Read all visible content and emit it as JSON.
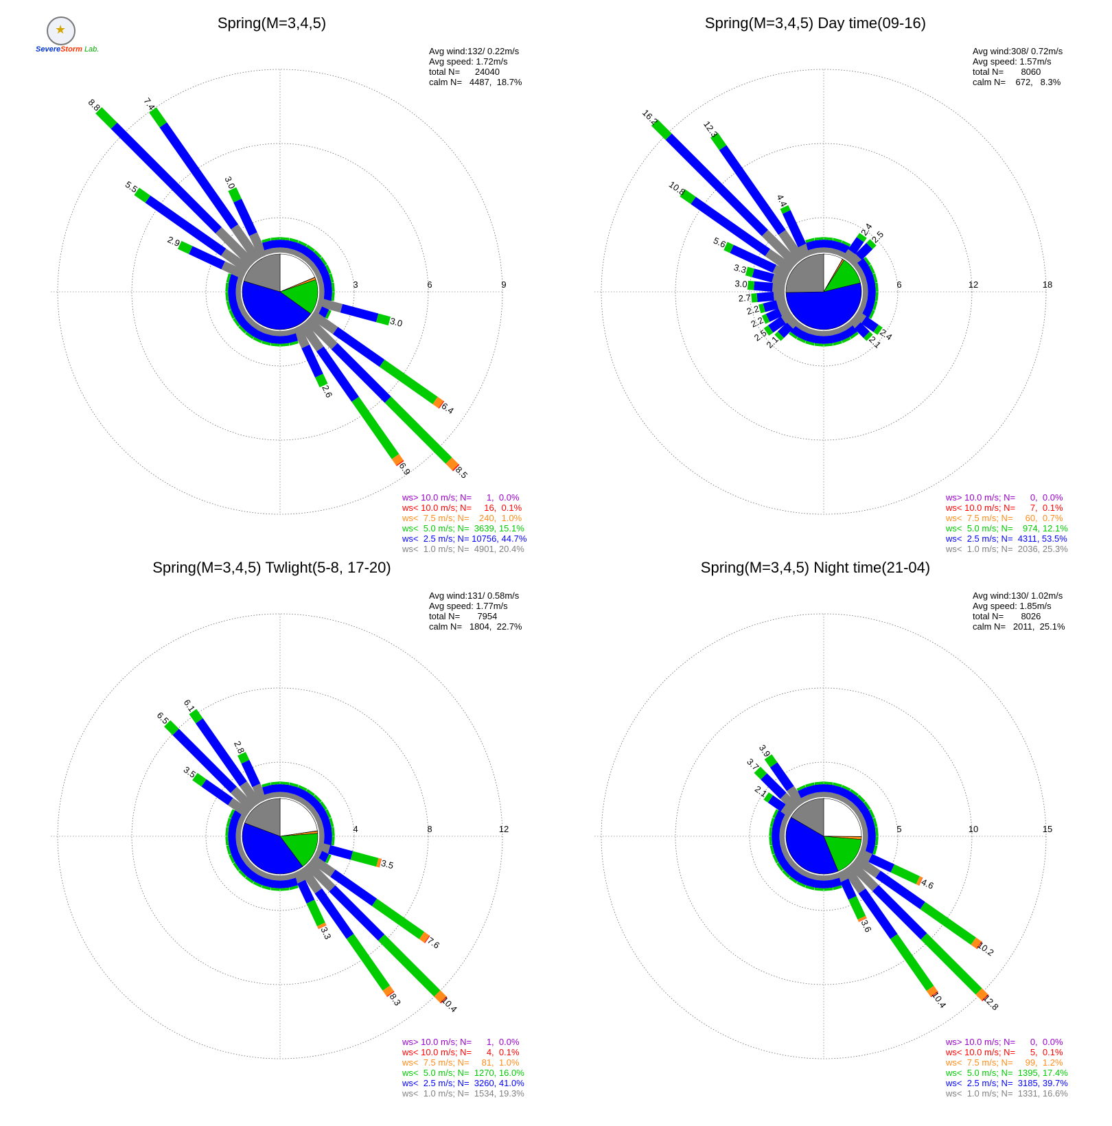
{
  "logo": {
    "text_severe": "Severe",
    "text_storm": "Storm",
    "text_lab": "Lab."
  },
  "colors": {
    "gt10": "#9900cc",
    "lt10": "#ff0000",
    "lt7_5": "#ff8c1a",
    "lt5": "#00cc00",
    "lt2_5": "#0000ff",
    "lt1": "#808080",
    "calm": "#ffffff"
  },
  "chart_data": [
    {
      "type": "windrose",
      "title": "Spring(M=3,4,5)",
      "rings": [
        3,
        6,
        9
      ],
      "stats": [
        "Avg wind:132/ 0.22m/s",
        "Avg speed: 1.72m/s",
        "total N=      24040",
        "calm N=   4487,  18.7%"
      ],
      "legend": [
        {
          "text": "ws> 10.0 m/s; N=      1,  0.0%",
          "color": "#9900cc"
        },
        {
          "text": "ws< 10.0 m/s; N=     16,  0.1%",
          "color": "#ff0000"
        },
        {
          "text": "ws<  7.5 m/s; N=    240,  1.0%",
          "color": "#ff8c1a"
        },
        {
          "text": "ws<  5.0 m/s; N=  3639, 15.1%",
          "color": "#00cc00"
        },
        {
          "text": "ws<  2.5 m/s; N= 10756, 44.7%",
          "color": "#0000ff"
        },
        {
          "text": "ws<  1.0 m/s; N=  4901, 20.4%",
          "color": "#808080"
        }
      ],
      "calm_pct": 18.7,
      "inner_pie": {
        "lt10": 0.1,
        "lt7_5": 1.0,
        "lt5": 15.1,
        "lt2_5": 44.7,
        "lt1": 20.4,
        "calm": 18.7
      },
      "directions": [
        {
          "dir": 315,
          "total": 8.8,
          "label": "8.8"
        },
        {
          "dir": 325,
          "total": 7.4,
          "label": "7.4"
        },
        {
          "dir": 305,
          "total": 5.5,
          "label": "5.5"
        },
        {
          "dir": 335,
          "total": 3.0,
          "label": "3.0"
        },
        {
          "dir": 295,
          "total": 2.9,
          "label": "2.9"
        },
        {
          "dir": 105,
          "total": 3.0,
          "label": "3.0"
        },
        {
          "dir": 125,
          "total": 6.4,
          "label": "6.4"
        },
        {
          "dir": 135,
          "total": 8.5,
          "label": "8.5"
        },
        {
          "dir": 145,
          "total": 6.9,
          "label": "6.9"
        },
        {
          "dir": 155,
          "total": 2.6,
          "label": "2.6"
        }
      ]
    },
    {
      "type": "windrose",
      "title": "Spring(M=3,4,5) Day time(09-16)",
      "rings": [
        6,
        12,
        18
      ],
      "stats": [
        "Avg wind:308/ 0.72m/s",
        "Avg speed: 1.57m/s",
        "total N=       8060",
        "calm N=    672,   8.3%"
      ],
      "legend": [
        {
          "text": "ws> 10.0 m/s; N=      0,  0.0%",
          "color": "#9900cc"
        },
        {
          "text": "ws< 10.0 m/s; N=      7,  0.1%",
          "color": "#ff0000"
        },
        {
          "text": "ws<  7.5 m/s; N=     60,  0.7%",
          "color": "#ff8c1a"
        },
        {
          "text": "ws<  5.0 m/s; N=    974, 12.1%",
          "color": "#00cc00"
        },
        {
          "text": "ws<  2.5 m/s; N=  4311, 53.5%",
          "color": "#0000ff"
        },
        {
          "text": "ws<  1.0 m/s; N=  2036, 25.3%",
          "color": "#808080"
        }
      ],
      "calm_pct": 8.3,
      "inner_pie": {
        "lt10": 0.1,
        "lt7_5": 0.7,
        "lt5": 12.1,
        "lt2_5": 53.5,
        "lt1": 25.3,
        "calm": 8.3
      },
      "directions": [
        {
          "dir": 315,
          "total": 16.2,
          "label": "16.2"
        },
        {
          "dir": 325,
          "total": 12.3,
          "label": "12.3"
        },
        {
          "dir": 305,
          "total": 10.8,
          "label": "10.8"
        },
        {
          "dir": 295,
          "total": 5.6,
          "label": "5.6"
        },
        {
          "dir": 335,
          "total": 4.4,
          "label": "4.4"
        },
        {
          "dir": 285,
          "total": 3.3,
          "label": "3.3"
        },
        {
          "dir": 275,
          "total": 3.0,
          "label": "3.0"
        },
        {
          "dir": 265,
          "total": 2.7,
          "label": "2.7"
        },
        {
          "dir": 255,
          "total": 2.2,
          "label": "2.2"
        },
        {
          "dir": 245,
          "total": 2.2,
          "label": "2.2"
        },
        {
          "dir": 235,
          "total": 2.5,
          "label": "2.5"
        },
        {
          "dir": 225,
          "total": 2.1,
          "label": "2.1"
        },
        {
          "dir": 35,
          "total": 2.4,
          "label": "2.4"
        },
        {
          "dir": 45,
          "total": 2.5,
          "label": "2.5"
        },
        {
          "dir": 125,
          "total": 2.4,
          "label": "2.4"
        },
        {
          "dir": 135,
          "total": 2.1,
          "label": "2.1"
        }
      ]
    },
    {
      "type": "windrose",
      "title": "Spring(M=3,4,5) Twlight(5-8, 17-20)",
      "rings": [
        4,
        8,
        12
      ],
      "stats": [
        "Avg wind:131/ 0.58m/s",
        "Avg speed: 1.77m/s",
        "total N=       7954",
        "calm N=   1804,  22.7%"
      ],
      "legend": [
        {
          "text": "ws> 10.0 m/s; N=      1,  0.0%",
          "color": "#9900cc"
        },
        {
          "text": "ws< 10.0 m/s; N=      4,  0.1%",
          "color": "#ff0000"
        },
        {
          "text": "ws<  7.5 m/s; N=     81,  1.0%",
          "color": "#ff8c1a"
        },
        {
          "text": "ws<  5.0 m/s; N=  1270, 16.0%",
          "color": "#00cc00"
        },
        {
          "text": "ws<  2.5 m/s; N=  3260, 41.0%",
          "color": "#0000ff"
        },
        {
          "text": "ws<  1.0 m/s; N=  1534, 19.3%",
          "color": "#808080"
        }
      ],
      "calm_pct": 22.7,
      "inner_pie": {
        "lt10": 0.1,
        "lt7_5": 1.0,
        "lt5": 16.0,
        "lt2_5": 41.0,
        "lt1": 19.3,
        "calm": 22.7
      },
      "directions": [
        {
          "dir": 315,
          "total": 6.5,
          "label": "6.5"
        },
        {
          "dir": 325,
          "total": 6.1,
          "label": "6.1"
        },
        {
          "dir": 335,
          "total": 2.8,
          "label": "2.8"
        },
        {
          "dir": 305,
          "total": 3.5,
          "label": "3.5"
        },
        {
          "dir": 105,
          "total": 3.5,
          "label": "3.5"
        },
        {
          "dir": 125,
          "total": 7.6,
          "label": "7.6"
        },
        {
          "dir": 135,
          "total": 10.4,
          "label": "10.4"
        },
        {
          "dir": 145,
          "total": 8.3,
          "label": "8.3"
        },
        {
          "dir": 155,
          "total": 3.3,
          "label": "3.3"
        }
      ]
    },
    {
      "type": "windrose",
      "title": "Spring(M=3,4,5) Night time(21-04)",
      "rings": [
        5,
        10,
        15
      ],
      "stats": [
        "Avg wind:130/ 1.02m/s",
        "Avg speed: 1.85m/s",
        "total N=       8026",
        "calm N=   2011,  25.1%"
      ],
      "legend": [
        {
          "text": "ws> 10.0 m/s; N=      0,  0.0%",
          "color": "#9900cc"
        },
        {
          "text": "ws< 10.0 m/s; N=      5,  0.1%",
          "color": "#ff0000"
        },
        {
          "text": "ws<  7.5 m/s; N=     99,  1.2%",
          "color": "#ff8c1a"
        },
        {
          "text": "ws<  5.0 m/s; N=  1395, 17.4%",
          "color": "#00cc00"
        },
        {
          "text": "ws<  2.5 m/s; N=  3185, 39.7%",
          "color": "#0000ff"
        },
        {
          "text": "ws<  1.0 m/s; N=  1331, 16.6%",
          "color": "#808080"
        }
      ],
      "calm_pct": 25.1,
      "inner_pie": {
        "lt10": 0.1,
        "lt7_5": 1.2,
        "lt5": 17.4,
        "lt2_5": 39.7,
        "lt1": 16.6,
        "calm": 25.1
      },
      "directions": [
        {
          "dir": 315,
          "total": 3.7,
          "label": "3.7"
        },
        {
          "dir": 325,
          "total": 3.9,
          "label": "3.9"
        },
        {
          "dir": 305,
          "total": 2.1,
          "label": "2.1"
        },
        {
          "dir": 115,
          "total": 4.6,
          "label": "4.6"
        },
        {
          "dir": 125,
          "total": 10.2,
          "label": "10.2"
        },
        {
          "dir": 135,
          "total": 12.8,
          "label": "12.8"
        },
        {
          "dir": 145,
          "total": 10.4,
          "label": "10.4"
        },
        {
          "dir": 155,
          "total": 3.6,
          "label": "3.6"
        }
      ]
    }
  ]
}
